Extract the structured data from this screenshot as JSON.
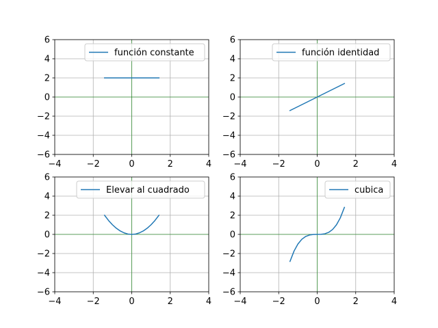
{
  "chart_data": [
    {
      "type": "line",
      "xlim": [
        -4,
        4
      ],
      "ylim": [
        -6,
        6
      ],
      "xticks": [
        "−4",
        "−2",
        "0",
        "2",
        "4"
      ],
      "yticks": [
        "6",
        "4",
        "2",
        "0",
        "−2",
        "−4",
        "−6"
      ],
      "grid": true,
      "axes_lines": {
        "x": 0,
        "y": 0,
        "color": "#008000"
      },
      "legend_position": "upper right",
      "series": [
        {
          "name": "función constante",
          "color": "#1f77b4",
          "x": [
            -1.4142,
            -1.0,
            -0.5,
            0.0,
            0.5,
            1.0,
            1.4142
          ],
          "y": [
            2,
            2,
            2,
            2,
            2,
            2,
            2
          ]
        }
      ]
    },
    {
      "type": "line",
      "xlim": [
        -4,
        4
      ],
      "ylim": [
        -6,
        6
      ],
      "xticks": [
        "−4",
        "−2",
        "0",
        "2",
        "4"
      ],
      "yticks": [
        "6",
        "4",
        "2",
        "0",
        "−2",
        "−4",
        "−6"
      ],
      "grid": true,
      "axes_lines": {
        "x": 0,
        "y": 0,
        "color": "#008000"
      },
      "legend_position": "upper right",
      "series": [
        {
          "name": "función identidad",
          "color": "#1f77b4",
          "x": [
            -1.4142,
            -1.0,
            -0.5,
            0.0,
            0.5,
            1.0,
            1.4142
          ],
          "y": [
            -1.4142,
            -1.0,
            -0.5,
            0.0,
            0.5,
            1.0,
            1.4142
          ]
        }
      ]
    },
    {
      "type": "line",
      "xlim": [
        -4,
        4
      ],
      "ylim": [
        -6,
        6
      ],
      "xticks": [
        "−4",
        "−2",
        "0",
        "2",
        "4"
      ],
      "yticks": [
        "6",
        "4",
        "2",
        "0",
        "−2",
        "−4",
        "−6"
      ],
      "grid": true,
      "axes_lines": {
        "x": 0,
        "y": 0,
        "color": "#008000"
      },
      "legend_position": "upper right",
      "series": [
        {
          "name": "Elevar al cuadrado",
          "color": "#1f77b4",
          "x": [
            -1.4142,
            -1.2,
            -1.0,
            -0.8,
            -0.6,
            -0.4,
            -0.2,
            0.0,
            0.2,
            0.4,
            0.6,
            0.8,
            1.0,
            1.2,
            1.4142
          ],
          "y": [
            2.0,
            1.44,
            1.0,
            0.64,
            0.36,
            0.16,
            0.04,
            0.0,
            0.04,
            0.16,
            0.36,
            0.64,
            1.0,
            1.44,
            2.0
          ]
        }
      ]
    },
    {
      "type": "line",
      "xlim": [
        -4,
        4
      ],
      "ylim": [
        -6,
        6
      ],
      "xticks": [
        "−4",
        "−2",
        "0",
        "2",
        "4"
      ],
      "yticks": [
        "6",
        "4",
        "2",
        "0",
        "−2",
        "−4",
        "−6"
      ],
      "grid": true,
      "axes_lines": {
        "x": 0,
        "y": 0,
        "color": "#008000"
      },
      "legend_position": "upper right",
      "series": [
        {
          "name": "cubica",
          "color": "#1f77b4",
          "x": [
            -1.4142,
            -1.2,
            -1.0,
            -0.8,
            -0.6,
            -0.4,
            -0.2,
            0.0,
            0.2,
            0.4,
            0.6,
            0.8,
            1.0,
            1.2,
            1.4142
          ],
          "y": [
            -2.828,
            -1.728,
            -1.0,
            -0.512,
            -0.216,
            -0.064,
            -0.008,
            0.0,
            0.008,
            0.064,
            0.216,
            0.512,
            1.0,
            1.728,
            2.828
          ]
        }
      ]
    }
  ]
}
